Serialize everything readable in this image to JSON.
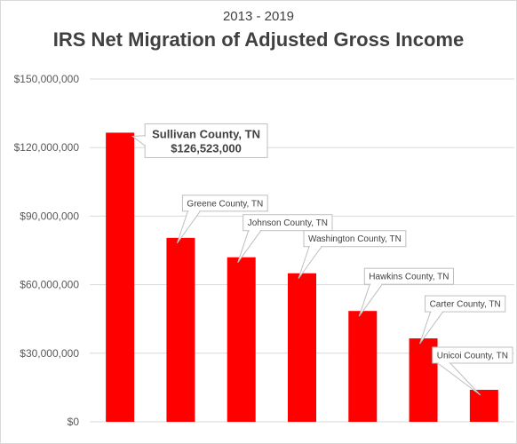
{
  "chart_data": {
    "type": "bar",
    "subtitle": "2013 - 2019",
    "title": "IRS Net Migration of Adjusted Gross Income",
    "categories": [
      "Sullivan County, TN",
      "Greene County, TN",
      "Johnson County, TN",
      "Washington County, TN",
      "Hawkins County, TN",
      "Carter County, TN",
      "Unicoi County, TN"
    ],
    "values": [
      126523000,
      80500000,
      72000000,
      65000000,
      48500000,
      36500000,
      14000000
    ],
    "highlight_label": "$126,523,000",
    "ylim": [
      0,
      150000000
    ],
    "yticks": [
      "$0",
      "$30,000,000",
      "$60,000,000",
      "$90,000,000",
      "$120,000,000",
      "$150,000,000"
    ],
    "xlabel": "",
    "ylabel": "",
    "grid": true,
    "bar_color": "#ff0000",
    "grid_color": "#d9d9d9"
  }
}
